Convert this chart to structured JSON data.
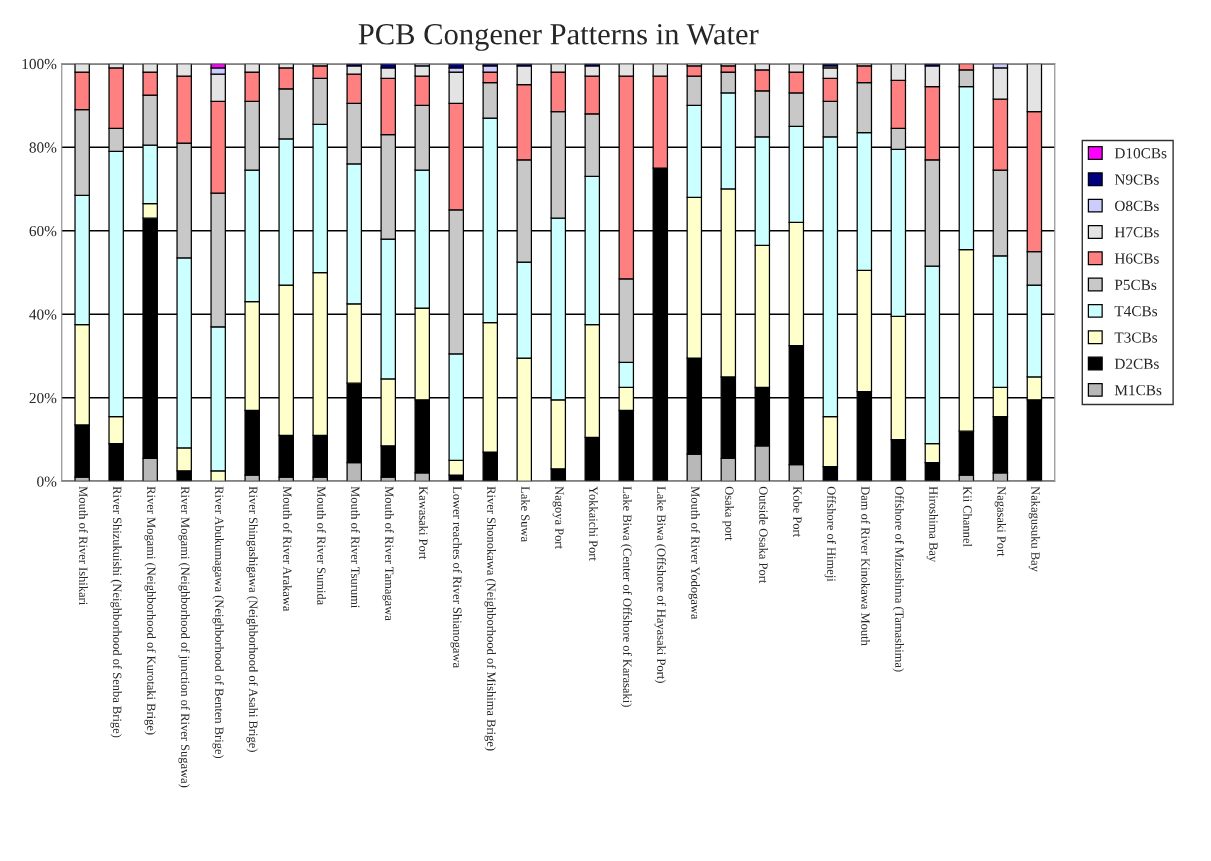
{
  "chart_data": {
    "type": "bar",
    "stacked": true,
    "title": "PCB Congener Patterns in Water",
    "categories": [
      "Mouth of River Ishikari",
      "River Shizukuishi (Neighborhood of Senba Brige)",
      "River Mogami (Neighborhood of Kurotaki Brige)",
      "River Mogami (Neighborhood of junction of River Sugawa)",
      "River Abukumagawa (Neighborhood of Benten Brige)",
      "River Shingashigawa (Neighborhood of Asahi Brige)",
      "Mouth of River Arakawa",
      "Mouth of River Sumida",
      "Mouth of River Tsurumi",
      "Mouth of River Tamagawa",
      "Kawasaki Port",
      "Lower reaches of River Shianogawa",
      "River Shonokawa (Neighborhood of Mishima Brige)",
      "Lake Suwa",
      "Nagoya Port",
      "Yokkaichi Port",
      "Lake Biwa (Center of Offshore of Karasaki)",
      "Lake Biwa (Offshore of Hayasaki Port)",
      "Mouth of River Yodogawa",
      "Osaka port",
      "Outside Osaka Port",
      "Kobe Port",
      "Offshore of Himeji",
      "Dam of River Kinokawa Mouth",
      "Offshore of Mizushima (Tamashima)",
      "Hiroshima Bay",
      "Kii Channel",
      "Nagasaki Port",
      "Nakagusuku Bay"
    ],
    "series": [
      {
        "name": "M1CBs",
        "color": "#b8b8b8",
        "values": [
          1,
          null,
          5.5,
          null,
          null,
          1.5,
          1,
          1,
          4.5,
          1,
          2,
          null,
          null,
          null,
          null,
          null,
          null,
          null,
          6.5,
          5.5,
          8.5,
          4,
          null,
          null,
          null,
          null,
          1.5,
          2,
          null
        ]
      },
      {
        "name": "D2CBs",
        "color": "#000000",
        "values": [
          12.5,
          9,
          57.5,
          2.5,
          null,
          15.5,
          10,
          10,
          19,
          7.5,
          17.5,
          1.5,
          7,
          null,
          3,
          10.5,
          17,
          75,
          23,
          19.5,
          14,
          28.5,
          3.5,
          21.5,
          10,
          4.5,
          10.5,
          13.5,
          19.5
        ]
      },
      {
        "name": "T3CBs",
        "color": "#ffffcc",
        "values": [
          24,
          6.5,
          3.5,
          5.5,
          2.5,
          26,
          36,
          39,
          19,
          16,
          22,
          3.5,
          31,
          29.5,
          16.5,
          27,
          5.5,
          null,
          38.5,
          45,
          34,
          29.5,
          12,
          29,
          29.5,
          4.5,
          43.5,
          7,
          5.5
        ]
      },
      {
        "name": "T4CBs",
        "color": "#ccffff",
        "values": [
          31,
          63.5,
          14,
          45.5,
          34.5,
          31.5,
          35,
          35.5,
          33.5,
          33.5,
          33,
          25.5,
          49,
          23,
          43.5,
          35.5,
          6,
          null,
          22,
          23,
          26,
          23,
          67,
          33,
          40,
          42.5,
          39,
          31.5,
          22
        ]
      },
      {
        "name": "P5CBs",
        "color": "#c8c8c8",
        "values": [
          20.5,
          5.5,
          12,
          27.5,
          32,
          16.5,
          12,
          11,
          14.5,
          25,
          15.5,
          34.5,
          8.5,
          24.5,
          25.5,
          15,
          20,
          null,
          7,
          5,
          11,
          8,
          8.5,
          12,
          5,
          25.5,
          4,
          20.5,
          8
        ]
      },
      {
        "name": "H6CBs",
        "color": "#ff8080",
        "values": [
          9,
          14.5,
          5.5,
          16,
          22,
          7,
          5,
          3,
          7,
          13.5,
          7,
          25.5,
          2.5,
          18,
          9.5,
          9,
          48.5,
          22,
          2.5,
          1.5,
          5,
          5,
          5.5,
          4,
          11.5,
          17.5,
          1.5,
          17,
          33.5
        ]
      },
      {
        "name": "H7CBs",
        "color": "#e4e4e4",
        "values": [
          2,
          1,
          2,
          3,
          6.5,
          2,
          1,
          0.5,
          2,
          2.5,
          2.5,
          7.5,
          null,
          4.5,
          2,
          2.5,
          3,
          3,
          0.5,
          0.5,
          1.5,
          2,
          2.5,
          0.5,
          4,
          5,
          null,
          7.5,
          11.5
        ]
      },
      {
        "name": "O8CBs",
        "color": "#ccccff",
        "values": [
          null,
          null,
          null,
          null,
          1.5,
          null,
          null,
          null,
          null,
          null,
          0.5,
          1,
          1.5,
          null,
          null,
          null,
          null,
          null,
          null,
          null,
          null,
          null,
          0.5,
          null,
          null,
          null,
          null,
          1,
          null
        ]
      },
      {
        "name": "N9CBs",
        "color": "#000080",
        "values": [
          null,
          null,
          null,
          null,
          null,
          null,
          null,
          null,
          0.5,
          1,
          null,
          1,
          0.5,
          0.5,
          null,
          0.5,
          null,
          null,
          null,
          null,
          null,
          null,
          0.5,
          null,
          null,
          0.5,
          null,
          null,
          null
        ]
      },
      {
        "name": "D10CBs",
        "color": "#ff00ff",
        "values": [
          null,
          null,
          null,
          null,
          1,
          null,
          null,
          null,
          null,
          null,
          null,
          null,
          null,
          null,
          null,
          null,
          null,
          null,
          null,
          null,
          null,
          null,
          null,
          null,
          null,
          null,
          null,
          null,
          null
        ]
      }
    ],
    "ylim": [
      0,
      100
    ],
    "yticks": [
      {
        "value": 0,
        "label": "0%"
      },
      {
        "value": 20,
        "label": "20%"
      },
      {
        "value": 40,
        "label": "40%"
      },
      {
        "value": 60,
        "label": "60%"
      },
      {
        "value": 80,
        "label": "80%"
      },
      {
        "value": 100,
        "label": "100%"
      }
    ],
    "grid": "y",
    "legend": "right"
  }
}
